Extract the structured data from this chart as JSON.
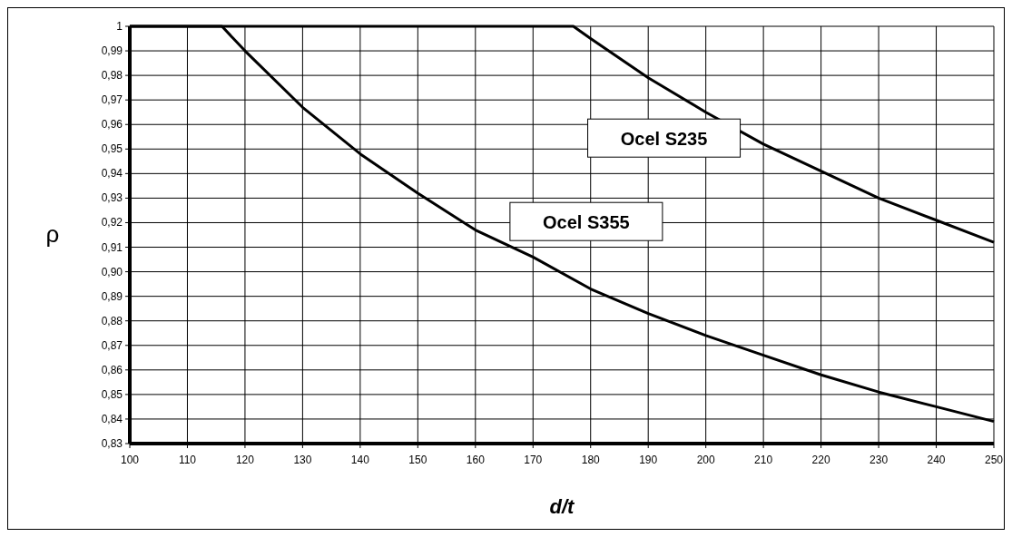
{
  "chart_data": {
    "type": "line",
    "xlabel": "d/t",
    "ylabel": "ρ",
    "xlim": [
      100,
      250
    ],
    "xticks": [
      100,
      110,
      120,
      130,
      140,
      150,
      160,
      170,
      180,
      190,
      200,
      210,
      220,
      230,
      240,
      250
    ],
    "ylim": [
      0.83,
      1
    ],
    "yticks": [
      {
        "value": 0.83,
        "label": "0,83"
      },
      {
        "value": 0.84,
        "label": "0,84"
      },
      {
        "value": 0.85,
        "label": "0,85"
      },
      {
        "value": 0.86,
        "label": "0,86"
      },
      {
        "value": 0.87,
        "label": "0,87"
      },
      {
        "value": 0.88,
        "label": "0,88"
      },
      {
        "value": 0.89,
        "label": "0,89"
      },
      {
        "value": 0.9,
        "label": "0,90"
      },
      {
        "value": 0.91,
        "label": "0,91"
      },
      {
        "value": 0.92,
        "label": "0,92"
      },
      {
        "value": 0.93,
        "label": "0,93"
      },
      {
        "value": 0.94,
        "label": "0,94"
      },
      {
        "value": 0.95,
        "label": "0,95"
      },
      {
        "value": 0.96,
        "label": "0,96"
      },
      {
        "value": 0.97,
        "label": "0,97"
      },
      {
        "value": 0.98,
        "label": "0,98"
      },
      {
        "value": 0.99,
        "label": "0,99"
      },
      {
        "value": 1,
        "label": "1"
      }
    ],
    "grid": true,
    "legend": false,
    "marker": "none",
    "line_style": "solid",
    "series": [
      {
        "name": "Ocel S355",
        "color": "#000000",
        "x": [
          100,
          116,
          120,
          130,
          140,
          150,
          160,
          170,
          180,
          190,
          200,
          210,
          220,
          230,
          240,
          250
        ],
        "values": [
          1,
          1,
          0.99,
          0.967,
          0.948,
          0.932,
          0.917,
          0.906,
          0.893,
          0.883,
          0.874,
          0.866,
          0.858,
          0.851,
          0.845,
          0.839
        ]
      },
      {
        "name": "Ocel S235",
        "color": "#000000",
        "x": [
          100,
          177,
          180,
          190,
          200,
          210,
          220,
          230,
          240,
          250
        ],
        "values": [
          1,
          1,
          0.995,
          0.979,
          0.965,
          0.952,
          0.941,
          0.93,
          0.921,
          0.912
        ]
      }
    ]
  }
}
